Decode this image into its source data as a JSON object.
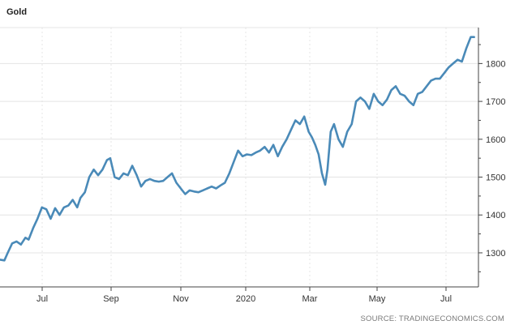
{
  "title": "Gold",
  "source": "SOURCE: TRADINGECONOMICS.COM",
  "colors": {
    "line": "#4a8ab8",
    "grid": "#e4e4e4",
    "axis": "#444444"
  },
  "chart_data": {
    "type": "line",
    "title": "Gold",
    "xlabel": "",
    "ylabel": "",
    "x_ticks": [
      "Jul",
      "Sep",
      "Nov",
      "2020",
      "Mar",
      "May",
      "Jul"
    ],
    "y_ticks": [
      1300,
      1400,
      1500,
      1600,
      1700,
      1800
    ],
    "ylim": [
      1210,
      1895
    ],
    "xlim": [
      "2019-05-27",
      "2020-08-03"
    ],
    "grid": true,
    "y_axis_side": "right",
    "series": [
      {
        "x": [
          "2019-05-27",
          "2019-05-31",
          "2019-06-03",
          "2019-06-07",
          "2019-06-11",
          "2019-06-15",
          "2019-06-19",
          "2019-06-22",
          "2019-06-26",
          "2019-06-30",
          "2019-07-04",
          "2019-07-08",
          "2019-07-12",
          "2019-07-16",
          "2019-07-20",
          "2019-07-24",
          "2019-07-28",
          "2019-08-01",
          "2019-08-05",
          "2019-08-08",
          "2019-08-12",
          "2019-08-16",
          "2019-08-20",
          "2019-08-24",
          "2019-08-28",
          "2019-09-01",
          "2019-09-04",
          "2019-09-08",
          "2019-09-12",
          "2019-09-16",
          "2019-09-20",
          "2019-09-24",
          "2019-09-28",
          "2019-10-02",
          "2019-10-06",
          "2019-10-10",
          "2019-10-14",
          "2019-10-18",
          "2019-10-22",
          "2019-10-26",
          "2019-10-30",
          "2019-11-03",
          "2019-11-07",
          "2019-11-11",
          "2019-11-15",
          "2019-11-19",
          "2019-11-23",
          "2019-11-27",
          "2019-12-01",
          "2019-12-05",
          "2019-12-09",
          "2019-12-13",
          "2019-12-17",
          "2019-12-21",
          "2019-12-25",
          "2019-12-29",
          "2020-01-02",
          "2020-01-06",
          "2020-01-10",
          "2020-01-14",
          "2020-01-18",
          "2020-01-22",
          "2020-01-26",
          "2020-01-30",
          "2020-02-03",
          "2020-02-07",
          "2020-02-11",
          "2020-02-15",
          "2020-02-19",
          "2020-02-23",
          "2020-02-27",
          "2020-03-02",
          "2020-03-05",
          "2020-03-08",
          "2020-03-11",
          "2020-03-14",
          "2020-03-17",
          "2020-03-19",
          "2020-03-22",
          "2020-03-25",
          "2020-03-29",
          "2020-04-02",
          "2020-04-06",
          "2020-04-10",
          "2020-04-14",
          "2020-04-18",
          "2020-04-22",
          "2020-04-26",
          "2020-04-30",
          "2020-05-04",
          "2020-05-08",
          "2020-05-12",
          "2020-05-16",
          "2020-05-20",
          "2020-05-24",
          "2020-05-28",
          "2020-06-01",
          "2020-06-05",
          "2020-06-09",
          "2020-06-13",
          "2020-06-17",
          "2020-06-21",
          "2020-06-25",
          "2020-06-29",
          "2020-07-03",
          "2020-07-07",
          "2020-07-11",
          "2020-07-15",
          "2020-07-19",
          "2020-07-23",
          "2020-07-27",
          "2020-07-30"
        ],
        "values": [
          1282,
          1280,
          1300,
          1325,
          1330,
          1322,
          1340,
          1335,
          1365,
          1390,
          1420,
          1415,
          1390,
          1418,
          1400,
          1420,
          1425,
          1440,
          1420,
          1445,
          1460,
          1500,
          1520,
          1505,
          1520,
          1545,
          1550,
          1500,
          1495,
          1510,
          1505,
          1530,
          1505,
          1475,
          1490,
          1495,
          1490,
          1488,
          1490,
          1500,
          1510,
          1485,
          1470,
          1455,
          1465,
          1462,
          1460,
          1465,
          1470,
          1475,
          1470,
          1478,
          1485,
          1510,
          1540,
          1570,
          1555,
          1560,
          1558,
          1565,
          1570,
          1580,
          1565,
          1585,
          1555,
          1580,
          1600,
          1625,
          1650,
          1640,
          1660,
          1620,
          1605,
          1585,
          1560,
          1510,
          1480,
          1520,
          1620,
          1640,
          1600,
          1580,
          1620,
          1640,
          1700,
          1710,
          1700,
          1680,
          1720,
          1700,
          1690,
          1705,
          1730,
          1740,
          1720,
          1715,
          1700,
          1690,
          1720,
          1725,
          1740,
          1755,
          1760,
          1760,
          1775,
          1790,
          1800,
          1810,
          1805,
          1840,
          1870,
          1870
        ]
      }
    ]
  }
}
